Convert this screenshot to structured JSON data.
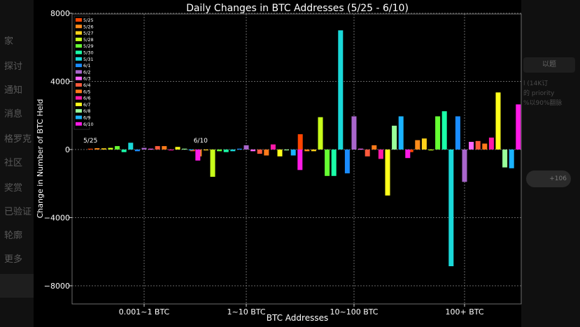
{
  "background": {
    "left_menu": [
      "家",
      "探讨",
      "通知",
      "消息",
      "格罗克",
      "社区",
      "奖赏",
      "已验证",
      "轮廓",
      "更多"
    ],
    "right_pill": "以题",
    "right_lines": [
      "l (14K订",
      "的 priority",
      "%以90%翻脉"
    ],
    "right_badge": "+106"
  },
  "colors": {
    "background": "#000000",
    "text": "#ffffff",
    "grid": "#888888",
    "series": [
      "#ff4500",
      "#ff8c1a",
      "#ffd21a",
      "#c8ff1a",
      "#66ff33",
      "#1affa8",
      "#1ad9d9",
      "#1a8cff",
      "#a966cc",
      "#ff66ff",
      "#ff5a3c",
      "#ff7a1a",
      "#ff1aa8",
      "#ffff1a",
      "#99ff99",
      "#1ab3ff",
      "#ff1ae6"
    ]
  },
  "chart_data": {
    "type": "bar",
    "title": "Daily Changes in BTC Addresses (5/25 - 6/10)",
    "xlabel": "BTC Addresses",
    "ylabel": "Change in Number of BTC Held",
    "ylim": [
      -9000,
      8000
    ],
    "yticks": [
      8000,
      4000,
      0,
      -4000,
      -8000
    ],
    "ytick_labels": [
      "8000",
      "4000",
      "0",
      "−4000",
      "−8000"
    ],
    "grid": true,
    "legend_position": "top-left",
    "categories": [
      "0.001~1 BTC",
      "1~10 BTC",
      "10~100 BTC",
      "100+ BTC"
    ],
    "group_annotations": {
      "first": "5/25",
      "last": "6/10"
    },
    "series": [
      {
        "name": "5/25",
        "values": [
          50,
          -100,
          900,
          -150
        ]
      },
      {
        "name": "5/26",
        "values": [
          80,
          -400,
          -100,
          550
        ]
      },
      {
        "name": "5/27",
        "values": [
          70,
          -50,
          -100,
          650
        ]
      },
      {
        "name": "5/28",
        "values": [
          100,
          -1600,
          1900,
          -50
        ]
      },
      {
        "name": "5/29",
        "values": [
          200,
          -100,
          -1550,
          1950
        ]
      },
      {
        "name": "5/30",
        "values": [
          -150,
          -150,
          -1550,
          2250
        ]
      },
      {
        "name": "5/31",
        "values": [
          400,
          -100,
          7000,
          -6850
        ]
      },
      {
        "name": "6/1",
        "values": [
          -100,
          50,
          -1400,
          1950
        ]
      },
      {
        "name": "6/2",
        "values": [
          100,
          250,
          1950,
          -1900
        ]
      },
      {
        "name": "6/3",
        "values": [
          50,
          -100,
          50,
          450
        ]
      },
      {
        "name": "6/4",
        "values": [
          200,
          -250,
          -400,
          500
        ]
      },
      {
        "name": "6/5",
        "values": [
          200,
          -350,
          250,
          350
        ]
      },
      {
        "name": "6/6",
        "values": [
          -50,
          300,
          -550,
          700
        ]
      },
      {
        "name": "6/7",
        "values": [
          150,
          -400,
          -2700,
          3350
        ]
      },
      {
        "name": "6/8",
        "values": [
          50,
          -50,
          1400,
          -1050
        ]
      },
      {
        "name": "6/9",
        "values": [
          -50,
          -350,
          1950,
          -1100
        ]
      },
      {
        "name": "6/10",
        "values": [
          -650,
          -1200,
          -500,
          2650
        ]
      }
    ]
  }
}
